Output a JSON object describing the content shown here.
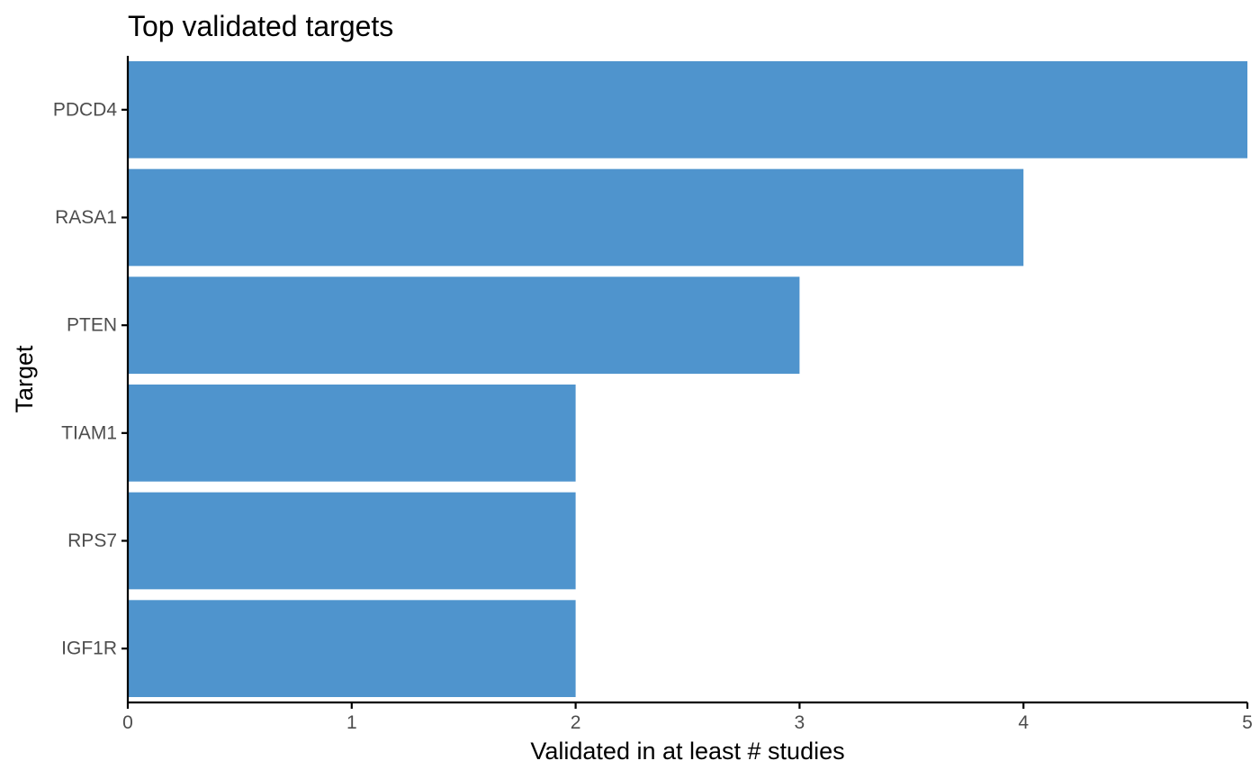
{
  "chart_data": {
    "type": "bar",
    "orientation": "horizontal",
    "title": "Top validated targets",
    "xlabel": "Validated in at least # studies",
    "ylabel": "Target",
    "categories": [
      "PDCD4",
      "RASA1",
      "PTEN",
      "TIAM1",
      "RPS7",
      "IGF1R"
    ],
    "values": [
      5,
      4,
      3,
      2,
      2,
      2
    ],
    "xlim": [
      0,
      5
    ],
    "xticks": [
      0,
      1,
      2,
      3,
      4,
      5
    ],
    "grid": false,
    "bar_color": "#4f94cd"
  }
}
